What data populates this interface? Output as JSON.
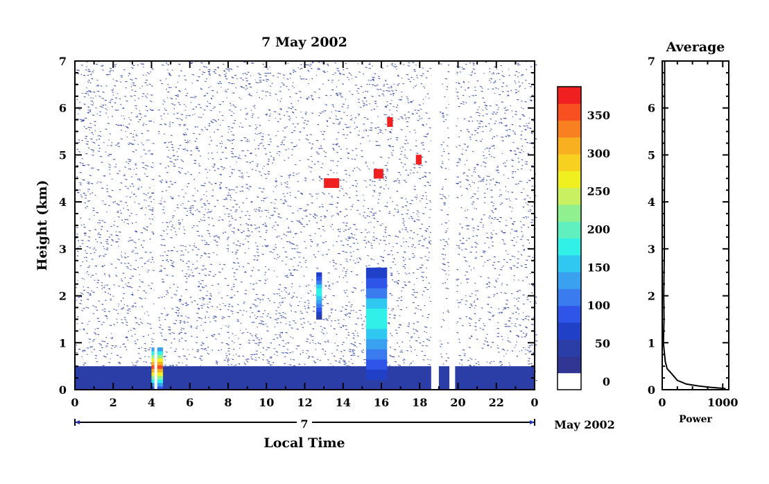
{
  "chart_data": [
    {
      "type": "heatmap",
      "title": "7 May 2002",
      "xlabel": "Local Time",
      "ylabel": "Height (km)",
      "x_ticks": [
        "0",
        "2",
        "4",
        "6",
        "8",
        "10",
        "12",
        "14",
        "16",
        "18",
        "20",
        "22",
        "0"
      ],
      "xlim": [
        0,
        24
      ],
      "y_ticks": [
        "0",
        "1",
        "2",
        "3",
        "4",
        "5",
        "6",
        "7"
      ],
      "ylim": [
        0,
        7
      ],
      "date_axis": {
        "day_label": "7",
        "month_label": "May 2002"
      },
      "colorbar": {
        "ticks": [
          "0",
          "50",
          "100",
          "150",
          "200",
          "250",
          "300",
          "350"
        ],
        "range": [
          0,
          380
        ],
        "colors": [
          "#313695",
          "#2b3ea8",
          "#2040c8",
          "#2f55e8",
          "#3a7cf0",
          "#3aa0f0",
          "#30c8f0",
          "#30f0e8",
          "#60f0c0",
          "#90f090",
          "#c8f060",
          "#f0f020",
          "#f8d020",
          "#f8b020",
          "#f88020",
          "#f85020",
          "#f02020"
        ]
      },
      "features": [
        {
          "name": "boundary layer",
          "x_range": [
            0,
            24
          ],
          "height_km": 0.25,
          "value": 40
        },
        {
          "name": "convective plume",
          "x_range": [
            15.2,
            16.3
          ],
          "height_km": [
            0,
            2.6
          ],
          "peak": 180
        },
        {
          "name": "elevated layer",
          "x_range": [
            13.0,
            13.8
          ],
          "height_km": 4.4,
          "value": 370
        },
        {
          "name": "elevated layer",
          "x_range": [
            15.6,
            16.1
          ],
          "height_km": 4.6,
          "value": 360
        },
        {
          "name": "elevated layer",
          "x_range": [
            16.3,
            16.6
          ],
          "height_km": 5.7,
          "value": 370
        },
        {
          "name": "elevated layer",
          "x_range": [
            17.8,
            18.1
          ],
          "height_km": 4.9,
          "value": 370
        },
        {
          "name": "plume",
          "x_range": [
            4.0,
            4.6
          ],
          "height_km": [
            0,
            0.9
          ],
          "value": 350
        },
        {
          "name": "plume",
          "x_range": [
            12.6,
            12.9
          ],
          "height_km": [
            1.5,
            2.5
          ],
          "value": 180
        }
      ],
      "data_gaps_hours": [
        [
          4.15,
          4.3
        ],
        [
          18.6,
          19.0
        ],
        [
          19.55,
          19.85
        ]
      ]
    },
    {
      "type": "line",
      "title": "Average",
      "xlabel": "Power",
      "ylabel": "",
      "x_ticks": [
        "0",
        "1000"
      ],
      "xlim": [
        0,
        1100
      ],
      "y_ticks": [
        "0",
        "1",
        "2",
        "3",
        "4",
        "5",
        "6",
        "7"
      ],
      "ylim": [
        0,
        7
      ],
      "series": [
        {
          "points": [
            [
              40,
              7.0
            ],
            [
              40,
              6.0
            ],
            [
              40,
              5.0
            ],
            [
              35,
              4.0
            ],
            [
              35,
              3.0
            ],
            [
              25,
              2.0
            ],
            [
              30,
              1.5
            ],
            [
              20,
              1.0
            ],
            [
              50,
              0.6
            ],
            [
              80,
              0.45
            ],
            [
              150,
              0.35
            ],
            [
              250,
              0.2
            ],
            [
              400,
              0.12
            ],
            [
              600,
              0.08
            ],
            [
              800,
              0.05
            ],
            [
              1000,
              0.03
            ],
            [
              1050,
              0.02
            ]
          ]
        }
      ]
    }
  ]
}
